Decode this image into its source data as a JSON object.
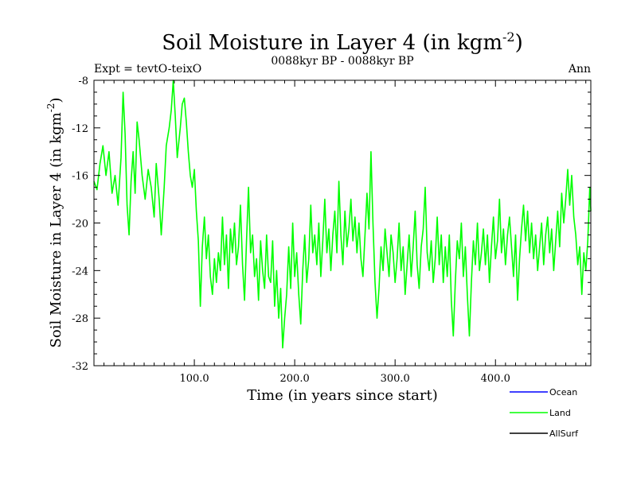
{
  "chart_data": {
    "type": "line",
    "title": "Soil Moisture in Layer 4 (in kgm",
    "title_sup": "-2",
    "title_end": ")",
    "subtitle": "0088kyr BP - 0088kyr BP",
    "left_note": "Expt = tevtO-teixO",
    "right_note": "Ann",
    "xlabel": "Time (in years since start)",
    "ylabel": "Soil Moisture in Layer 4 (in kgm",
    "ylabel_sup": "-2",
    "ylabel_end": ")",
    "xlim": [
      0,
      495
    ],
    "ylim": [
      -32,
      -8
    ],
    "xticks": [
      100,
      200,
      300,
      400
    ],
    "xtick_labels": [
      "100.0",
      "200.0",
      "300.0",
      "400.0"
    ],
    "yticks": [
      -8,
      -12,
      -16,
      -20,
      -24,
      -28,
      -32
    ],
    "ytick_labels": [
      "-8",
      "-12",
      "-16",
      "-20",
      "-24",
      "-28",
      "-32"
    ],
    "grid": false,
    "legend_position": "bottom-right",
    "series": [
      {
        "name": "Ocean",
        "color": "#0000ff",
        "values": []
      },
      {
        "name": "Land",
        "color": "#00ff00",
        "anchors": [
          [
            0,
            -16.5
          ],
          [
            3,
            -17.2
          ],
          [
            6,
            -15.0
          ],
          [
            9,
            -13.5
          ],
          [
            12,
            -16.0
          ],
          [
            15,
            -14.0
          ],
          [
            18,
            -17.5
          ],
          [
            21,
            -16.0
          ],
          [
            24,
            -18.5
          ],
          [
            27,
            -14.5
          ],
          [
            29,
            -9.0
          ],
          [
            31,
            -12.5
          ],
          [
            33,
            -18.5
          ],
          [
            35,
            -21.0
          ],
          [
            37,
            -16.5
          ],
          [
            39,
            -14.0
          ],
          [
            41,
            -17.5
          ],
          [
            43,
            -11.5
          ],
          [
            45,
            -13.0
          ],
          [
            48,
            -16.0
          ],
          [
            51,
            -18.0
          ],
          [
            54,
            -15.5
          ],
          [
            57,
            -17.0
          ],
          [
            60,
            -19.5
          ],
          [
            62,
            -15.0
          ],
          [
            65,
            -18.0
          ],
          [
            67,
            -21.0
          ],
          [
            70,
            -17.0
          ],
          [
            72,
            -13.5
          ],
          [
            75,
            -12.0
          ],
          [
            77,
            -10.5
          ],
          [
            79,
            -8.0
          ],
          [
            81,
            -11.0
          ],
          [
            83,
            -14.5
          ],
          [
            86,
            -12.0
          ],
          [
            88,
            -10.0
          ],
          [
            90,
            -9.5
          ],
          [
            92,
            -11.5
          ],
          [
            94,
            -14.0
          ],
          [
            96,
            -16.0
          ],
          [
            98,
            -17.0
          ],
          [
            100,
            -15.5
          ],
          [
            102,
            -19.0
          ],
          [
            104,
            -21.5
          ],
          [
            106,
            -27.0
          ],
          [
            108,
            -22.0
          ],
          [
            110,
            -19.5
          ],
          [
            112,
            -23.0
          ],
          [
            114,
            -21.0
          ],
          [
            116,
            -24.5
          ],
          [
            118,
            -26.0
          ],
          [
            120,
            -23.0
          ],
          [
            122,
            -25.0
          ],
          [
            124,
            -22.5
          ],
          [
            126,
            -24.0
          ],
          [
            128,
            -19.5
          ],
          [
            130,
            -23.5
          ],
          [
            132,
            -21.0
          ],
          [
            134,
            -25.5
          ],
          [
            136,
            -20.5
          ],
          [
            138,
            -22.5
          ],
          [
            140,
            -20.0
          ],
          [
            142,
            -23.5
          ],
          [
            144,
            -22.0
          ],
          [
            146,
            -18.5
          ],
          [
            148,
            -23.5
          ],
          [
            150,
            -26.5
          ],
          [
            152,
            -21.5
          ],
          [
            154,
            -17.0
          ],
          [
            156,
            -22.5
          ],
          [
            158,
            -21.0
          ],
          [
            160,
            -24.5
          ],
          [
            162,
            -23.0
          ],
          [
            164,
            -26.5
          ],
          [
            166,
            -21.5
          ],
          [
            168,
            -24.0
          ],
          [
            170,
            -25.5
          ],
          [
            172,
            -21.0
          ],
          [
            174,
            -24.5
          ],
          [
            176,
            -25.0
          ],
          [
            178,
            -21.5
          ],
          [
            180,
            -27.0
          ],
          [
            182,
            -24.0
          ],
          [
            184,
            -28.0
          ],
          [
            186,
            -25.5
          ],
          [
            188,
            -30.5
          ],
          [
            190,
            -28.0
          ],
          [
            192,
            -26.0
          ],
          [
            194,
            -22.0
          ],
          [
            196,
            -25.5
          ],
          [
            198,
            -20.0
          ],
          [
            200,
            -24.5
          ],
          [
            202,
            -22.5
          ],
          [
            204,
            -26.0
          ],
          [
            206,
            -28.5
          ],
          [
            208,
            -24.0
          ],
          [
            210,
            -21.0
          ],
          [
            212,
            -25.0
          ],
          [
            214,
            -23.0
          ],
          [
            216,
            -18.5
          ],
          [
            218,
            -22.5
          ],
          [
            220,
            -21.0
          ],
          [
            222,
            -23.5
          ],
          [
            224,
            -20.0
          ],
          [
            226,
            -24.5
          ],
          [
            228,
            -21.5
          ],
          [
            230,
            -18.0
          ],
          [
            232,
            -22.5
          ],
          [
            234,
            -20.5
          ],
          [
            236,
            -24.0
          ],
          [
            238,
            -21.0
          ],
          [
            240,
            -19.0
          ],
          [
            242,
            -22.5
          ],
          [
            244,
            -16.5
          ],
          [
            246,
            -21.0
          ],
          [
            248,
            -23.5
          ],
          [
            250,
            -19.0
          ],
          [
            252,
            -22.0
          ],
          [
            254,
            -20.5
          ],
          [
            256,
            -18.0
          ],
          [
            258,
            -21.5
          ],
          [
            260,
            -19.5
          ],
          [
            262,
            -22.5
          ],
          [
            264,
            -20.0
          ],
          [
            266,
            -23.0
          ],
          [
            268,
            -24.5
          ],
          [
            270,
            -21.0
          ],
          [
            272,
            -17.5
          ],
          [
            274,
            -20.5
          ],
          [
            276,
            -14.0
          ],
          [
            278,
            -20.0
          ],
          [
            280,
            -25.0
          ],
          [
            282,
            -28.0
          ],
          [
            284,
            -25.5
          ],
          [
            286,
            -22.0
          ],
          [
            288,
            -24.0
          ],
          [
            290,
            -20.5
          ],
          [
            292,
            -22.5
          ],
          [
            294,
            -24.5
          ],
          [
            296,
            -21.0
          ],
          [
            298,
            -22.5
          ],
          [
            300,
            -25.0
          ],
          [
            302,
            -23.0
          ],
          [
            304,
            -20.0
          ],
          [
            306,
            -24.0
          ],
          [
            308,
            -22.0
          ],
          [
            310,
            -26.0
          ],
          [
            312,
            -23.5
          ],
          [
            314,
            -21.0
          ],
          [
            316,
            -24.5
          ],
          [
            318,
            -22.0
          ],
          [
            320,
            -19.0
          ],
          [
            322,
            -23.5
          ],
          [
            324,
            -25.5
          ],
          [
            326,
            -22.0
          ],
          [
            328,
            -20.5
          ],
          [
            330,
            -17.0
          ],
          [
            332,
            -22.5
          ],
          [
            334,
            -24.0
          ],
          [
            336,
            -21.5
          ],
          [
            338,
            -25.0
          ],
          [
            340,
            -23.0
          ],
          [
            342,
            -19.5
          ],
          [
            344,
            -23.5
          ],
          [
            346,
            -21.0
          ],
          [
            348,
            -25.0
          ],
          [
            350,
            -22.0
          ],
          [
            352,
            -24.5
          ],
          [
            354,
            -21.0
          ],
          [
            356,
            -26.5
          ],
          [
            358,
            -29.5
          ],
          [
            360,
            -25.0
          ],
          [
            362,
            -21.5
          ],
          [
            364,
            -23.0
          ],
          [
            366,
            -20.0
          ],
          [
            368,
            -24.5
          ],
          [
            370,
            -22.0
          ],
          [
            372,
            -26.0
          ],
          [
            374,
            -29.5
          ],
          [
            376,
            -25.0
          ],
          [
            378,
            -21.5
          ],
          [
            380,
            -23.5
          ],
          [
            382,
            -20.0
          ],
          [
            384,
            -24.0
          ],
          [
            386,
            -22.5
          ],
          [
            388,
            -20.5
          ],
          [
            390,
            -23.5
          ],
          [
            392,
            -21.0
          ],
          [
            394,
            -25.0
          ],
          [
            396,
            -22.0
          ],
          [
            398,
            -19.5
          ],
          [
            400,
            -23.0
          ],
          [
            402,
            -21.5
          ],
          [
            404,
            -18.0
          ],
          [
            406,
            -22.5
          ],
          [
            408,
            -20.5
          ],
          [
            410,
            -23.5
          ],
          [
            412,
            -21.0
          ],
          [
            414,
            -19.5
          ],
          [
            416,
            -22.0
          ],
          [
            418,
            -24.5
          ],
          [
            420,
            -21.0
          ],
          [
            422,
            -26.5
          ],
          [
            424,
            -23.0
          ],
          [
            426,
            -20.5
          ],
          [
            428,
            -18.5
          ],
          [
            430,
            -21.5
          ],
          [
            432,
            -19.0
          ],
          [
            434,
            -22.5
          ],
          [
            436,
            -20.0
          ],
          [
            438,
            -23.0
          ],
          [
            440,
            -21.0
          ],
          [
            442,
            -24.0
          ],
          [
            444,
            -22.0
          ],
          [
            446,
            -20.0
          ],
          [
            448,
            -23.5
          ],
          [
            450,
            -21.0
          ],
          [
            452,
            -19.5
          ],
          [
            454,
            -22.5
          ],
          [
            456,
            -20.5
          ],
          [
            458,
            -24.0
          ],
          [
            460,
            -21.5
          ],
          [
            462,
            -19.0
          ],
          [
            464,
            -22.0
          ],
          [
            466,
            -17.5
          ],
          [
            468,
            -20.0
          ],
          [
            470,
            -18.0
          ],
          [
            472,
            -15.5
          ],
          [
            474,
            -18.5
          ],
          [
            476,
            -16.0
          ],
          [
            478,
            -19.5
          ],
          [
            480,
            -21.0
          ],
          [
            482,
            -23.5
          ],
          [
            484,
            -22.0
          ],
          [
            486,
            -26.0
          ],
          [
            488,
            -22.5
          ],
          [
            490,
            -24.0
          ],
          [
            492,
            -21.5
          ],
          [
            494,
            -17.0
          ],
          [
            495,
            -19.0
          ]
        ]
      },
      {
        "name": "AllSurf",
        "color": "#000000",
        "values": []
      }
    ]
  }
}
